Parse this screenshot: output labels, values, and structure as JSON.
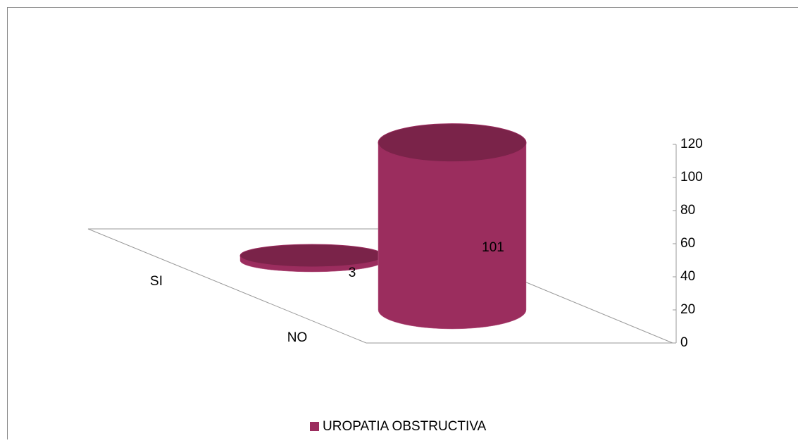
{
  "chart_data": {
    "type": "cylinder3d",
    "categories": [
      "SI",
      "NO"
    ],
    "series": [
      {
        "name": "UROPATIA OBSTRUCTIVA",
        "color": "#9b2d5e",
        "values": [
          3,
          101
        ]
      }
    ],
    "ylim": [
      0,
      120
    ],
    "yticks": [
      0,
      20,
      40,
      60,
      80,
      100,
      120
    ],
    "legend": "bottom"
  }
}
